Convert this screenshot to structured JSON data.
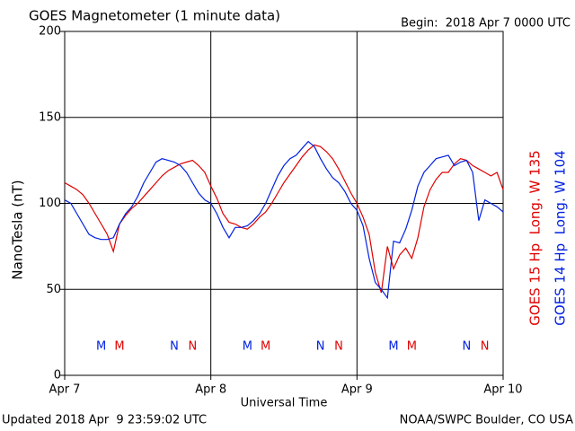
{
  "chart_data": {
    "type": "line",
    "title": "GOES Magnetometer (1 minute data)",
    "subtitle": "Begin:  2018 Apr 7 0000 UTC",
    "y_label": "NanoTesla (nT)",
    "x_label": "Universal Time",
    "footer_left": "Updated 2018 Apr  9 23:59:02 UTC",
    "footer_right": "NOAA/SWPC Boulder, CO USA",
    "xlim": [
      0,
      72
    ],
    "xticks": [
      {
        "value": 0,
        "label": "Apr 7"
      },
      {
        "value": 24,
        "label": "Apr 8"
      },
      {
        "value": 48,
        "label": "Apr 9"
      },
      {
        "value": 72,
        "label": "Apr 10"
      }
    ],
    "ylim": [
      0,
      200
    ],
    "yticks": [
      0,
      50,
      100,
      150,
      200
    ],
    "grid": true,
    "x": [
      0,
      1,
      2,
      3,
      4,
      5,
      6,
      7,
      8,
      9,
      10,
      11,
      12,
      13,
      14,
      15,
      16,
      17,
      18,
      19,
      20,
      21,
      22,
      23,
      24,
      25,
      26,
      27,
      28,
      29,
      30,
      31,
      32,
      33,
      34,
      35,
      36,
      37,
      38,
      39,
      40,
      41,
      42,
      43,
      44,
      45,
      46,
      47,
      48,
      49,
      50,
      51,
      52,
      53,
      54,
      55,
      56,
      57,
      58,
      59,
      60,
      61,
      62,
      63,
      64,
      65,
      66,
      67,
      68,
      69,
      70,
      71,
      72
    ],
    "series": [
      {
        "name": "GOES 15 Hp  Long. W 135",
        "color": "#e00000",
        "values": [
          112,
          110,
          108,
          105,
          100,
          94,
          88,
          82,
          72,
          88,
          93,
          97,
          100,
          104,
          108,
          112,
          116,
          119,
          121,
          123,
          124,
          125,
          122,
          118,
          110,
          103,
          94,
          89,
          88,
          86,
          85,
          88,
          92,
          95,
          100,
          106,
          112,
          117,
          122,
          127,
          131,
          134,
          133,
          130,
          126,
          120,
          113,
          106,
          100,
          92,
          82,
          60,
          48,
          75,
          62,
          70,
          74,
          68,
          80,
          98,
          108,
          114,
          118,
          118,
          123,
          126,
          125,
          122,
          120,
          118,
          116,
          118,
          108
        ]
      },
      {
        "name": "GOES 14 Hp  Long. W 104",
        "color": "#0020e0",
        "values": [
          102,
          100,
          94,
          88,
          82,
          80,
          79,
          79,
          80,
          88,
          94,
          98,
          104,
          112,
          118,
          124,
          126,
          125,
          124,
          122,
          118,
          112,
          106,
          102,
          100,
          94,
          86,
          80,
          86,
          86,
          87,
          90,
          94,
          100,
          108,
          116,
          122,
          126,
          128,
          132,
          136,
          133,
          126,
          120,
          115,
          112,
          107,
          100,
          96,
          87,
          68,
          54,
          50,
          45,
          78,
          77,
          85,
          96,
          110,
          118,
          122,
          126,
          127,
          128,
          122,
          124,
          125,
          118,
          90,
          102,
          100,
          98,
          95
        ]
      }
    ],
    "annotations": [
      {
        "text": "M",
        "x": 6,
        "color": "#0020e0"
      },
      {
        "text": "M",
        "x": 9,
        "color": "#e00000"
      },
      {
        "text": "N",
        "x": 18,
        "color": "#0020e0"
      },
      {
        "text": "N",
        "x": 21,
        "color": "#e00000"
      },
      {
        "text": "M",
        "x": 30,
        "color": "#0020e0"
      },
      {
        "text": "M",
        "x": 33,
        "color": "#e00000"
      },
      {
        "text": "N",
        "x": 42,
        "color": "#0020e0"
      },
      {
        "text": "N",
        "x": 45,
        "color": "#e00000"
      },
      {
        "text": "M",
        "x": 54,
        "color": "#0020e0"
      },
      {
        "text": "M",
        "x": 57,
        "color": "#e00000"
      },
      {
        "text": "N",
        "x": 66,
        "color": "#0020e0"
      },
      {
        "text": "N",
        "x": 69,
        "color": "#e00000"
      }
    ]
  }
}
